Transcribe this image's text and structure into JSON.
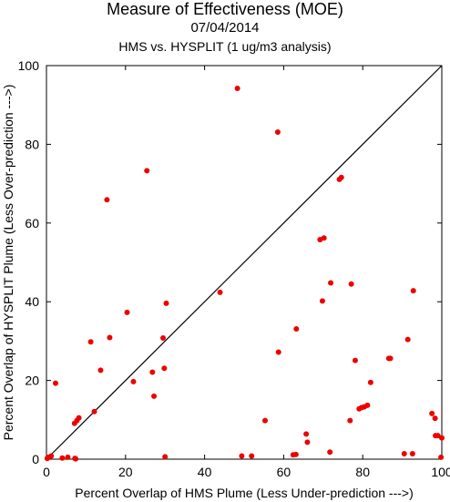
{
  "chart_data": {
    "type": "scatter",
    "title": "Measure of Effectiveness (MOE)",
    "subtitle": "07/04/2014",
    "subtitle2": "HMS vs. HYSPLIT  (1 ug/m3 analysis)",
    "xlabel": "Percent Overlap of HMS Plume (Less Under-prediction --->)",
    "ylabel": "Percent Overlap of HYSPLIT Plume (Less Over-prediction --->)",
    "xlim": [
      0,
      100
    ],
    "ylim": [
      0,
      100
    ],
    "xticks": [
      "0",
      "20",
      "40",
      "60",
      "80",
      "100"
    ],
    "yticks": [
      "0",
      "20",
      "40",
      "60",
      "80",
      "100"
    ],
    "grid": false,
    "reference_line": "y = x",
    "point_color": "#ee0000",
    "line_color": "#000000",
    "points": [
      [
        0.2,
        0.2
      ],
      [
        0.5,
        0.5
      ],
      [
        1.2,
        0.8
      ],
      [
        2.3,
        19.3
      ],
      [
        4,
        0.3
      ],
      [
        5.4,
        0.5
      ],
      [
        7.2,
        0.2
      ],
      [
        7.4,
        0.1
      ],
      [
        7.1,
        9.1
      ],
      [
        7.7,
        9.8
      ],
      [
        8.2,
        10.5
      ],
      [
        11.2,
        29.8
      ],
      [
        12.1,
        12.1
      ],
      [
        13.7,
        22.6
      ],
      [
        15.3,
        65.9
      ],
      [
        16,
        30.9
      ],
      [
        22,
        19.7
      ],
      [
        20.4,
        37.3
      ],
      [
        25.4,
        73.3
      ],
      [
        26.8,
        22.1
      ],
      [
        27.2,
        16
      ],
      [
        29.5,
        30.8
      ],
      [
        29.8,
        23.1
      ],
      [
        30,
        0.6
      ],
      [
        30.3,
        39.6
      ],
      [
        43.9,
        42.4
      ],
      [
        48.3,
        94.2
      ],
      [
        49.4,
        0.8
      ],
      [
        51.9,
        0.8
      ],
      [
        55.3,
        9.8
      ],
      [
        58.5,
        83.1
      ],
      [
        58.7,
        27.2
      ],
      [
        62.4,
        1.1
      ],
      [
        63.1,
        1.2
      ],
      [
        63.2,
        33.1
      ],
      [
        65.7,
        6.4
      ],
      [
        66,
        4.3
      ],
      [
        69.2,
        55.8
      ],
      [
        69.8,
        40.2
      ],
      [
        70.2,
        56.2
      ],
      [
        71.7,
        1.8
      ],
      [
        71.9,
        44.8
      ],
      [
        74.1,
        71.1
      ],
      [
        74.6,
        71.6
      ],
      [
        76.8,
        9.8
      ],
      [
        77.1,
        44.5
      ],
      [
        78.1,
        25.1
      ],
      [
        79.1,
        12.8
      ],
      [
        79.7,
        13.1
      ],
      [
        80.4,
        13.3
      ],
      [
        81.2,
        13.7
      ],
      [
        82,
        19.5
      ],
      [
        86.6,
        25.6
      ],
      [
        87,
        25.6
      ],
      [
        90.5,
        1.4
      ],
      [
        91.4,
        30.4
      ],
      [
        92.6,
        1.4
      ],
      [
        92.8,
        42.8
      ],
      [
        97.5,
        11.6
      ],
      [
        98.3,
        10.4
      ],
      [
        98.4,
        6
      ],
      [
        99,
        6
      ],
      [
        99.8,
        0.5
      ],
      [
        100,
        5.4
      ]
    ]
  }
}
